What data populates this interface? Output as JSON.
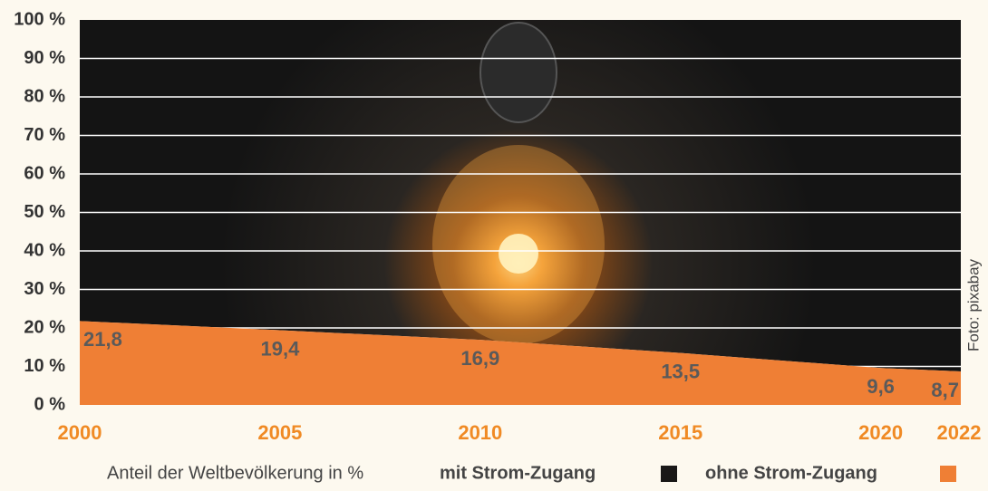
{
  "chart_data": {
    "type": "area",
    "x": [
      2000,
      2005,
      2010,
      2015,
      2020,
      2022
    ],
    "xlim": [
      2000,
      2022
    ],
    "xticks": [
      2000,
      2005,
      2010,
      2015,
      2020,
      2022
    ],
    "ylim": [
      0,
      100
    ],
    "yticks": [
      {
        "value": 0,
        "label": "0 %"
      },
      {
        "value": 10,
        "label": "10 %"
      },
      {
        "value": 20,
        "label": "20 %"
      },
      {
        "value": 30,
        "label": "30 %"
      },
      {
        "value": 40,
        "label": "40 %"
      },
      {
        "value": 50,
        "label": "50 %"
      },
      {
        "value": 60,
        "label": "60 %"
      },
      {
        "value": 70,
        "label": "70 %"
      },
      {
        "value": 80,
        "label": "80 %"
      },
      {
        "value": 90,
        "label": "90 %"
      },
      {
        "value": 100,
        "label": "100 %"
      }
    ],
    "grid": true,
    "legend_title": "Anteil der Weltbevölkerung in %",
    "credit": "Foto: pixabay",
    "series": [
      {
        "name": "mit Strom-Zugang",
        "color": "#1a1a1a",
        "values": [
          78.2,
          80.6,
          83.1,
          86.5,
          90.4,
          91.3
        ]
      },
      {
        "name": "ohne Strom-Zugang",
        "color": "#ef7f35",
        "values": [
          21.8,
          19.4,
          16.9,
          13.5,
          9.6,
          8.7
        ],
        "value_labels": [
          "21,8",
          "19,4",
          "16,9",
          "13,5",
          "9,6",
          "8,7"
        ]
      }
    ]
  }
}
